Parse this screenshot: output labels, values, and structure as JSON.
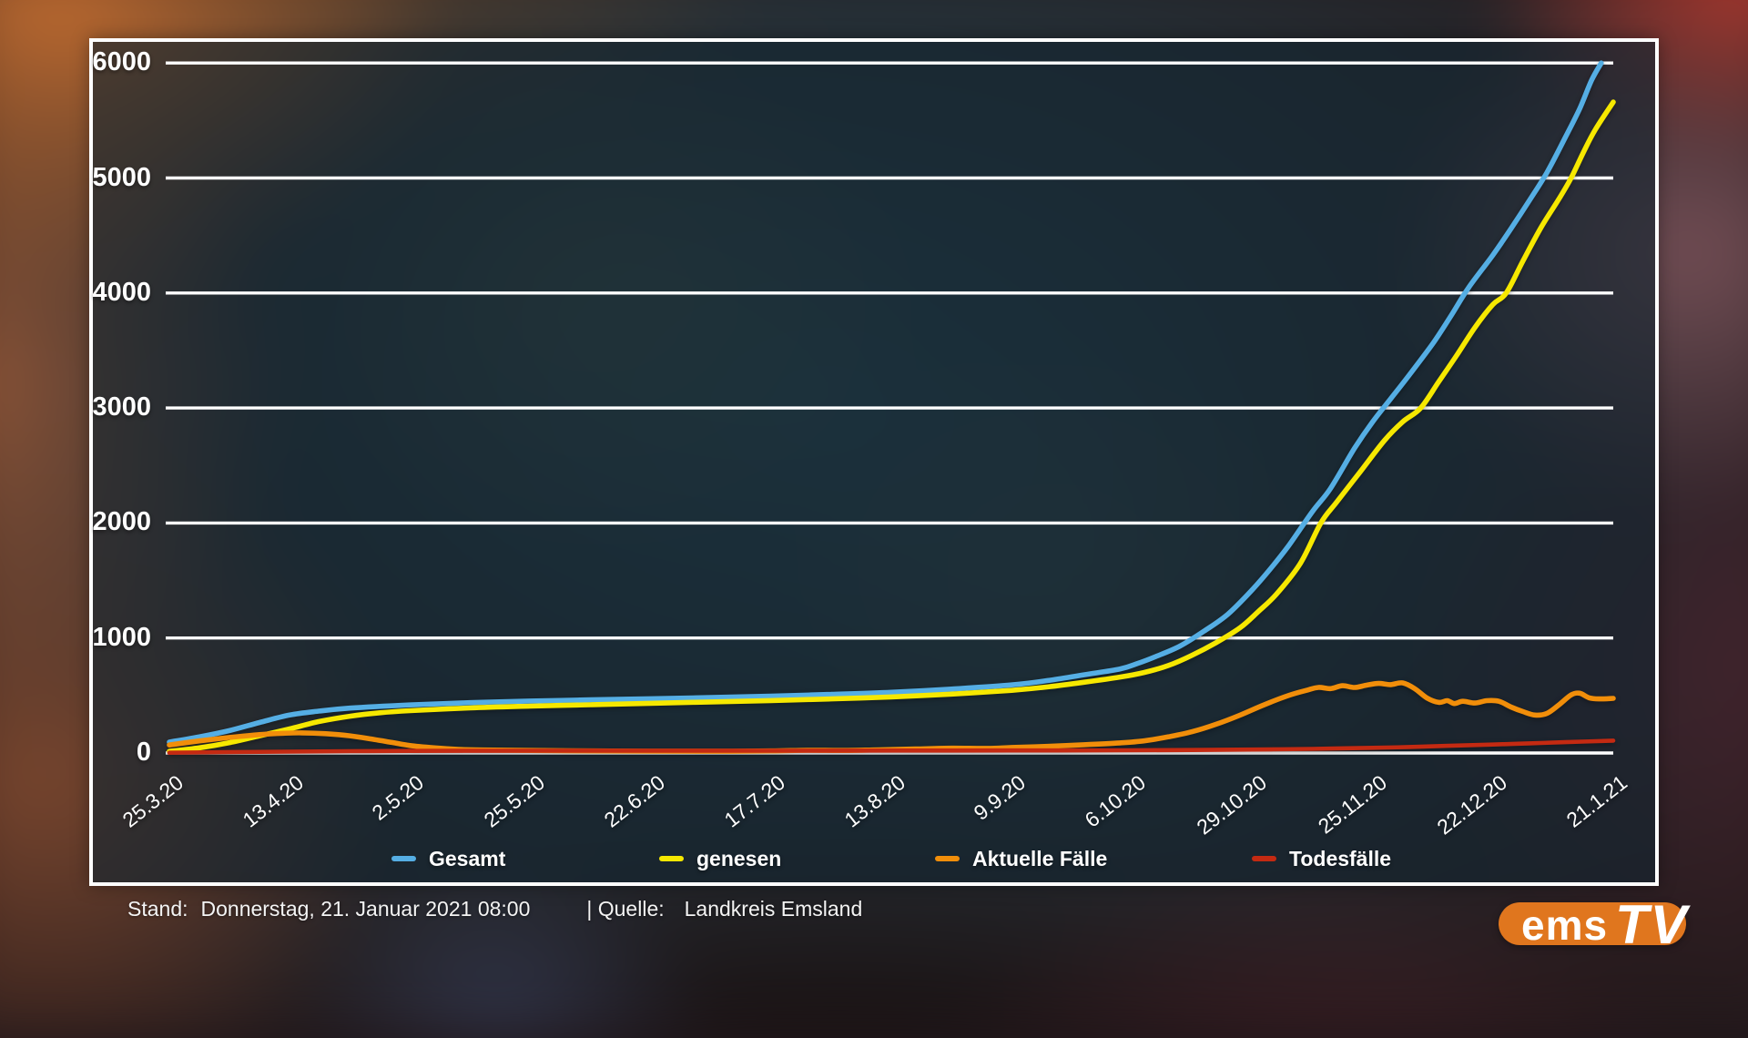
{
  "footer": {
    "stand_label": "Stand:",
    "stand_value": "Donnerstag, 21. Januar 2021 08:00",
    "source_label": "| Quelle:",
    "source_value": "Landkreis Emsland"
  },
  "logo": {
    "text_ems": "ems",
    "text_tv": "TV"
  },
  "chart_data": {
    "type": "line",
    "title": "",
    "xlabel": "",
    "ylabel": "",
    "ylim": [
      0,
      6000
    ],
    "grid": true,
    "legend_position": "bottom",
    "y_ticks": [
      0,
      1000,
      2000,
      3000,
      4000,
      5000,
      6000
    ],
    "x_tick_labels": [
      "25.3.20",
      "13.4.20",
      "2.5.20",
      "25.5.20",
      "22.6.20",
      "17.7.20",
      "13.8.20",
      "9.9.20",
      "6.10.20",
      "29.10.20",
      "25.11.20",
      "22.12.20",
      "21.1.21"
    ],
    "x_unit": "tick index (dates above, non-linear calendar spacing)",
    "series": [
      {
        "name": "Gesamt",
        "color": "#55aee4",
        "points": [
          [
            0,
            95
          ],
          [
            0.25,
            140
          ],
          [
            0.5,
            195
          ],
          [
            0.75,
            265
          ],
          [
            1,
            330
          ],
          [
            1.25,
            365
          ],
          [
            1.5,
            390
          ],
          [
            2,
            418
          ],
          [
            2.5,
            438
          ],
          [
            3,
            452
          ],
          [
            3.5,
            462
          ],
          [
            4,
            472
          ],
          [
            4.5,
            482
          ],
          [
            5,
            494
          ],
          [
            5.5,
            510
          ],
          [
            6,
            528
          ],
          [
            6.5,
            556
          ],
          [
            7,
            592
          ],
          [
            7.3,
            630
          ],
          [
            7.6,
            680
          ],
          [
            7.9,
            730
          ],
          [
            8.05,
            780
          ],
          [
            8.2,
            840
          ],
          [
            8.4,
            930
          ],
          [
            8.6,
            1060
          ],
          [
            8.8,
            1210
          ],
          [
            9,
            1420
          ],
          [
            9.15,
            1600
          ],
          [
            9.3,
            1800
          ],
          [
            9.5,
            2100
          ],
          [
            9.65,
            2300
          ],
          [
            9.85,
            2650
          ],
          [
            10,
            2880
          ],
          [
            10.15,
            3080
          ],
          [
            10.3,
            3280
          ],
          [
            10.5,
            3560
          ],
          [
            10.65,
            3800
          ],
          [
            10.8,
            4050
          ],
          [
            11,
            4330
          ],
          [
            11.15,
            4560
          ],
          [
            11.3,
            4800
          ],
          [
            11.45,
            5050
          ],
          [
            11.6,
            5350
          ],
          [
            11.72,
            5600
          ],
          [
            11.82,
            5850
          ],
          [
            11.9,
            6020
          ]
        ]
      },
      {
        "name": "genesen",
        "color": "#f6e800",
        "points": [
          [
            0,
            15
          ],
          [
            0.25,
            45
          ],
          [
            0.5,
            90
          ],
          [
            0.75,
            150
          ],
          [
            1,
            210
          ],
          [
            1.25,
            275
          ],
          [
            1.5,
            320
          ],
          [
            1.75,
            350
          ],
          [
            2,
            368
          ],
          [
            2.5,
            392
          ],
          [
            3,
            408
          ],
          [
            3.5,
            420
          ],
          [
            4,
            432
          ],
          [
            4.5,
            444
          ],
          [
            5,
            456
          ],
          [
            5.5,
            470
          ],
          [
            6,
            488
          ],
          [
            6.5,
            512
          ],
          [
            7,
            545
          ],
          [
            7.3,
            575
          ],
          [
            7.6,
            615
          ],
          [
            7.9,
            660
          ],
          [
            8.1,
            700
          ],
          [
            8.3,
            760
          ],
          [
            8.5,
            850
          ],
          [
            8.7,
            960
          ],
          [
            8.9,
            1090
          ],
          [
            9.05,
            1230
          ],
          [
            9.2,
            1380
          ],
          [
            9.4,
            1650
          ],
          [
            9.57,
            2000
          ],
          [
            9.7,
            2180
          ],
          [
            9.9,
            2450
          ],
          [
            10.1,
            2720
          ],
          [
            10.25,
            2880
          ],
          [
            10.4,
            3000
          ],
          [
            10.55,
            3230
          ],
          [
            10.7,
            3460
          ],
          [
            10.85,
            3700
          ],
          [
            11,
            3900
          ],
          [
            11.11,
            4000
          ],
          [
            11.25,
            4280
          ],
          [
            11.4,
            4570
          ],
          [
            11.55,
            4820
          ],
          [
            11.65,
            5000
          ],
          [
            11.75,
            5220
          ],
          [
            11.85,
            5420
          ],
          [
            12,
            5660
          ]
        ]
      },
      {
        "name": "Aktuelle Fälle",
        "color": "#f18e0a",
        "points": [
          [
            0,
            70
          ],
          [
            0.25,
            105
          ],
          [
            0.5,
            135
          ],
          [
            0.75,
            160
          ],
          [
            0.95,
            172
          ],
          [
            1.1,
            175
          ],
          [
            1.3,
            168
          ],
          [
            1.5,
            150
          ],
          [
            1.7,
            118
          ],
          [
            1.85,
            92
          ],
          [
            2,
            65
          ],
          [
            2.2,
            45
          ],
          [
            2.4,
            32
          ],
          [
            2.6,
            26
          ],
          [
            3,
            22
          ],
          [
            3.5,
            18
          ],
          [
            4,
            16
          ],
          [
            4.5,
            15
          ],
          [
            5,
            18
          ],
          [
            5.3,
            24
          ],
          [
            5.6,
            22
          ],
          [
            5.9,
            28
          ],
          [
            6.2,
            35
          ],
          [
            6.5,
            42
          ],
          [
            6.8,
            40
          ],
          [
            7,
            48
          ],
          [
            7.3,
            58
          ],
          [
            7.6,
            72
          ],
          [
            7.9,
            88
          ],
          [
            8.1,
            105
          ],
          [
            8.3,
            140
          ],
          [
            8.5,
            185
          ],
          [
            8.7,
            250
          ],
          [
            8.9,
            330
          ],
          [
            9.1,
            420
          ],
          [
            9.3,
            500
          ],
          [
            9.45,
            545
          ],
          [
            9.55,
            570
          ],
          [
            9.65,
            560
          ],
          [
            9.75,
            585
          ],
          [
            9.85,
            570
          ],
          [
            9.95,
            590
          ],
          [
            10.05,
            605
          ],
          [
            10.15,
            595
          ],
          [
            10.25,
            610
          ],
          [
            10.35,
            560
          ],
          [
            10.45,
            480
          ],
          [
            10.55,
            440
          ],
          [
            10.62,
            455
          ],
          [
            10.68,
            430
          ],
          [
            10.75,
            450
          ],
          [
            10.85,
            435
          ],
          [
            10.95,
            455
          ],
          [
            11.05,
            450
          ],
          [
            11.15,
            400
          ],
          [
            11.25,
            360
          ],
          [
            11.35,
            330
          ],
          [
            11.45,
            345
          ],
          [
            11.55,
            420
          ],
          [
            11.65,
            505
          ],
          [
            11.72,
            520
          ],
          [
            11.8,
            480
          ],
          [
            11.88,
            470
          ],
          [
            12,
            475
          ]
        ]
      },
      {
        "name": "Todesfälle",
        "color": "#c42a12",
        "points": [
          [
            0,
            2
          ],
          [
            0.5,
            8
          ],
          [
            1,
            12
          ],
          [
            1.5,
            16
          ],
          [
            2,
            18
          ],
          [
            3,
            20
          ],
          [
            4,
            20
          ],
          [
            5,
            20
          ],
          [
            6,
            21
          ],
          [
            7,
            22
          ],
          [
            8,
            24
          ],
          [
            8.5,
            26
          ],
          [
            9,
            30
          ],
          [
            9.5,
            36
          ],
          [
            10,
            45
          ],
          [
            10.3,
            52
          ],
          [
            10.6,
            62
          ],
          [
            11,
            74
          ],
          [
            11.3,
            84
          ],
          [
            11.6,
            94
          ],
          [
            12,
            108
          ]
        ]
      }
    ]
  }
}
